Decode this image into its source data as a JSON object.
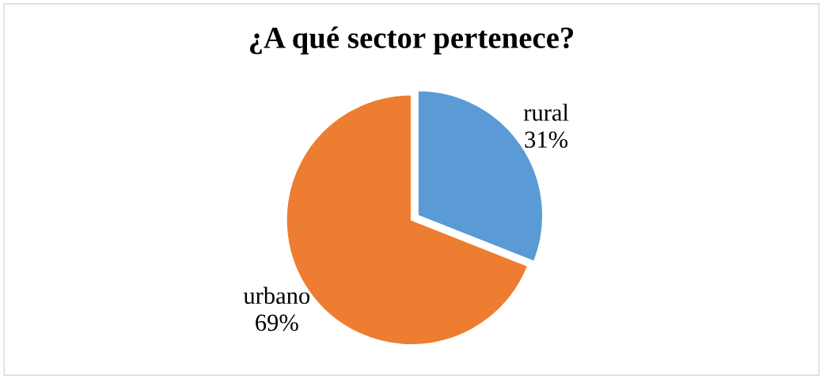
{
  "chart_data": {
    "type": "pie",
    "title": "¿A qué sector pertenece?",
    "categories": [
      "rural",
      "urbano"
    ],
    "values": [
      31,
      69
    ],
    "value_labels": [
      "31%",
      "69%"
    ],
    "colors": [
      "#5b9bd5",
      "#ed7d31"
    ]
  }
}
